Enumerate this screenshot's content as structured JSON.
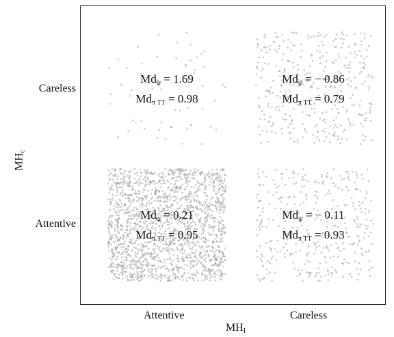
{
  "chart_data": {
    "type": "scatter",
    "subtype": "jittered 2x2 categorical scatter",
    "x_axis": {
      "label_base": "MH",
      "label_sub": "I",
      "categories": [
        "Attentive",
        "Careless"
      ]
    },
    "y_axis": {
      "label_base": "MH",
      "label_sub": "c",
      "categories": [
        "Attentive",
        "Careless"
      ]
    },
    "grid": false,
    "point_color": "#9a9a9a",
    "cells": [
      {
        "x": "Attentive",
        "y": "Careless",
        "density": "sparse",
        "psi_prefix": "Md",
        "psi_sub": "ψ",
        "psi_value": "= 1.69",
        "tt_prefix": "Md",
        "tt_sub": "π TT",
        "tt_value": "= 0.98"
      },
      {
        "x": "Careless",
        "y": "Careless",
        "density": "medium",
        "psi_prefix": "Md",
        "psi_sub": "ψ",
        "psi_value": "= − 0.86",
        "tt_prefix": "Md",
        "tt_sub": "π TT",
        "tt_value": "= 0.79"
      },
      {
        "x": "Attentive",
        "y": "Attentive",
        "density": "dense",
        "psi_prefix": "Md",
        "psi_sub": "ψ",
        "psi_value": "= 0.21",
        "tt_prefix": "Md",
        "tt_sub": "π TT",
        "tt_value": "= 0.95"
      },
      {
        "x": "Careless",
        "y": "Attentive",
        "density": "medium",
        "psi_prefix": "Md",
        "psi_sub": "ψ",
        "psi_value": "= − 0.11",
        "tt_prefix": "Md",
        "tt_sub": "π TT",
        "tt_value": "= 0.93"
      }
    ]
  }
}
